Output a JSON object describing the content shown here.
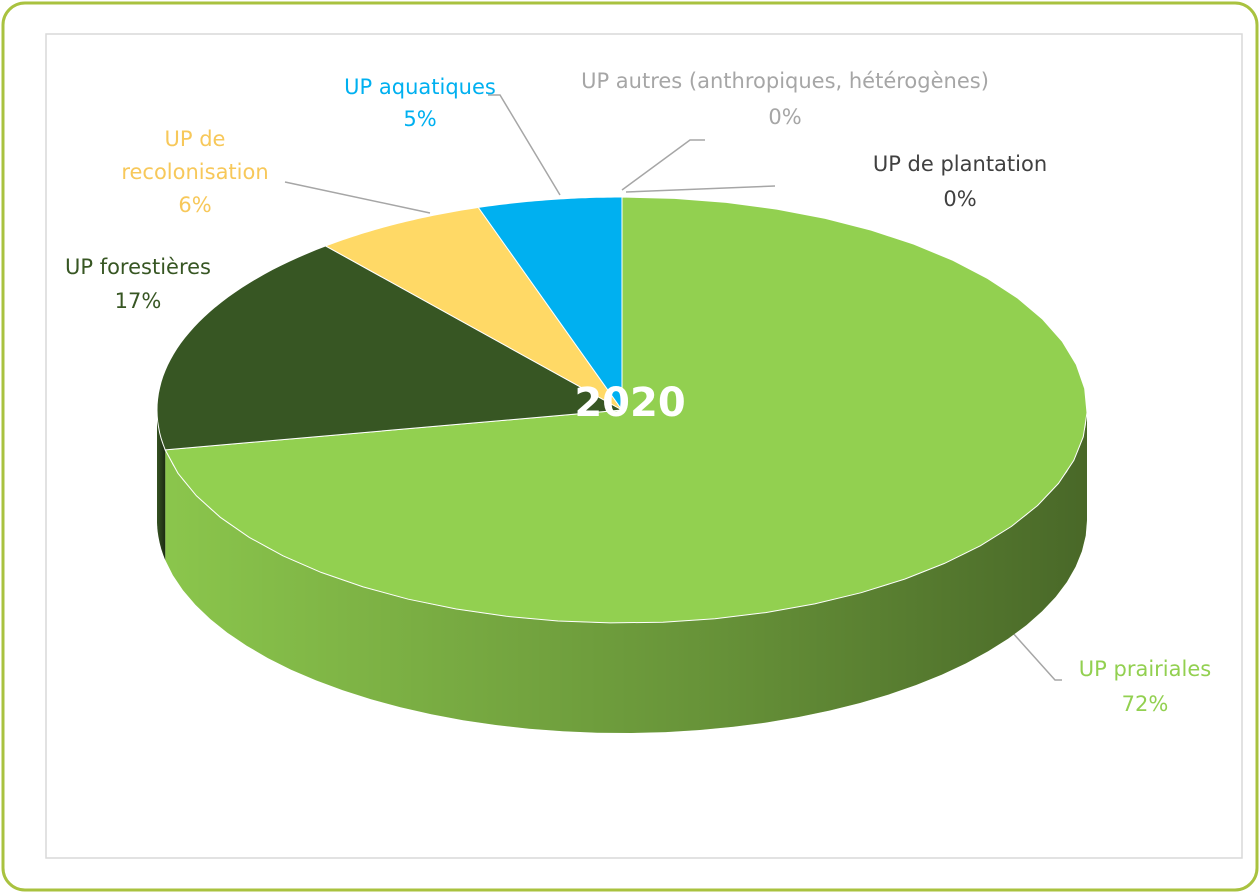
{
  "chart_data": {
    "type": "pie",
    "title": "2020",
    "categories": [
      "UP prairiales",
      "UP forestières",
      "UP de recolonisation",
      "UP aquatiques",
      "UP autres (anthropiques, hétérogènes)",
      "UP de plantation"
    ],
    "values": [
      72,
      17,
      6,
      5,
      0,
      0
    ],
    "value_labels": [
      "72%",
      "17%",
      "6%",
      "5%",
      "0%",
      "0%"
    ],
    "colors": [
      "#92d050",
      "#375623",
      "#ffd966",
      "#00b0f0",
      "#a6a6a6",
      "#595959"
    ]
  }
}
